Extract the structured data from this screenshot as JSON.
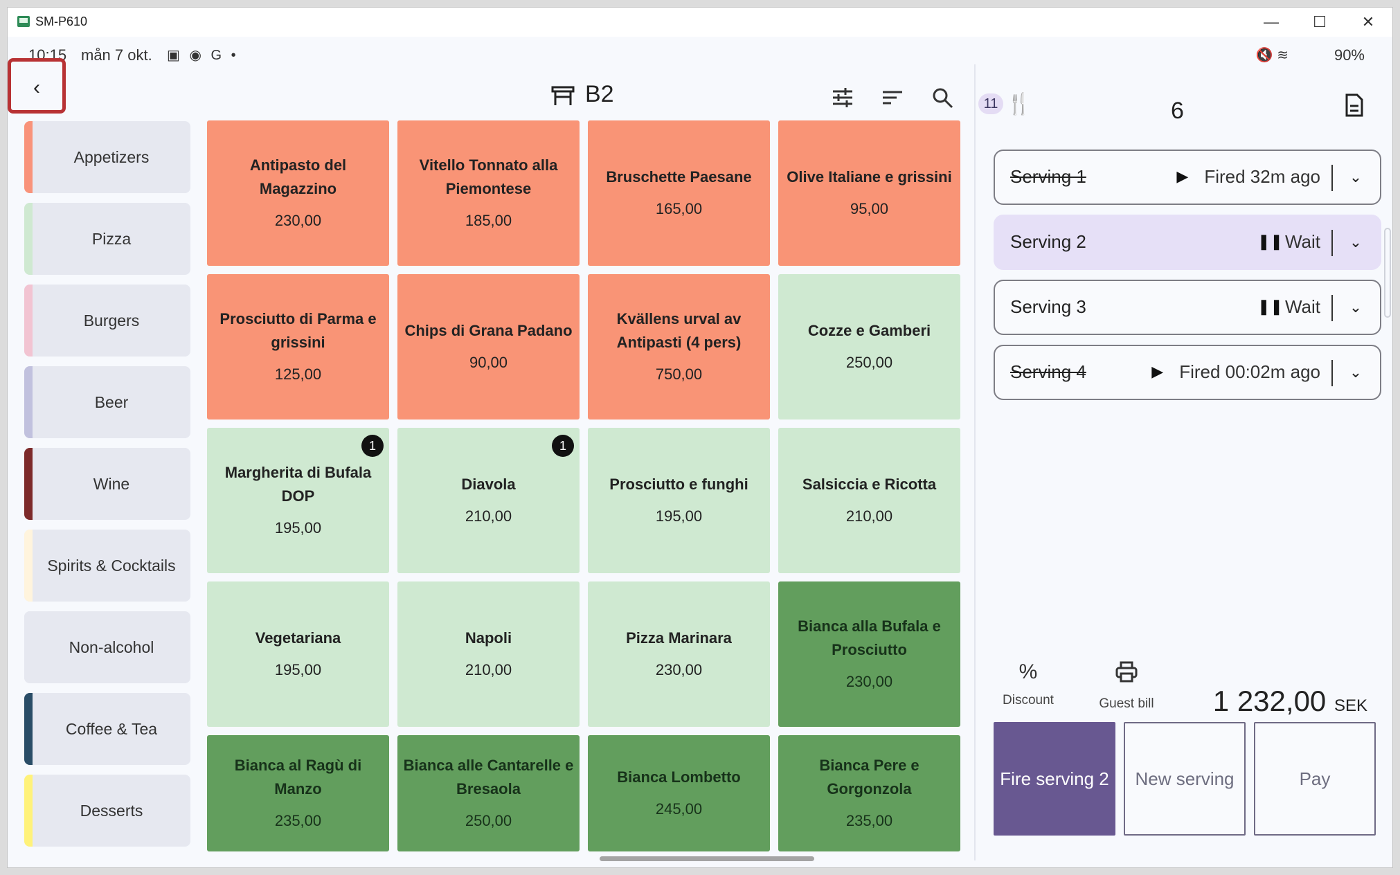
{
  "window": {
    "title": "SM-P610",
    "minimize": "—",
    "maximize": "☐",
    "close": "✕"
  },
  "status": {
    "time": "10:15",
    "date": "mån 7 okt.",
    "icons": "▣ ◉ G •",
    "battery": "90%",
    "right_icons": "🔇 ≋"
  },
  "header": {
    "back": "‹",
    "table": "B2"
  },
  "categories": [
    {
      "label": "Appetizers",
      "color": "#f9937a"
    },
    {
      "label": "Pizza",
      "color": "#cfe9d1"
    },
    {
      "label": "Burgers",
      "color": "#f2c4d2"
    },
    {
      "label": "Beer",
      "color": "#c1c1de"
    },
    {
      "label": "Wine",
      "color": "#7d2a2a"
    },
    {
      "label": "Spirits & Cocktails",
      "color": "#fff4dd"
    },
    {
      "label": "Non-alcohol",
      "color": "#e6e8f0"
    },
    {
      "label": "Coffee & Tea",
      "color": "#2a4d67"
    },
    {
      "label": "Desserts",
      "color": "#fff27a"
    }
  ],
  "products": [
    {
      "name": "Antipasto del Magazzino",
      "price": "230,00",
      "style": "orange",
      "badge": ""
    },
    {
      "name": "Vitello Tonnato alla Piemontese",
      "price": "185,00",
      "style": "orange",
      "badge": ""
    },
    {
      "name": "Bruschette Paesane",
      "price": "165,00",
      "style": "orange",
      "badge": ""
    },
    {
      "name": "Olive Italiane e grissini",
      "price": "95,00",
      "style": "orange",
      "badge": ""
    },
    {
      "name": "Prosciutto di Parma e grissini",
      "price": "125,00",
      "style": "orange",
      "badge": ""
    },
    {
      "name": "Chips di Grana Padano",
      "price": "90,00",
      "style": "orange",
      "badge": ""
    },
    {
      "name": "Kvällens urval av Antipasti (4 pers)",
      "price": "750,00",
      "style": "orange",
      "badge": ""
    },
    {
      "name": "Cozze e Gamberi",
      "price": "250,00",
      "style": "light",
      "badge": ""
    },
    {
      "name": "Margherita di Bufala DOP",
      "price": "195,00",
      "style": "light",
      "badge": "1"
    },
    {
      "name": "Diavola",
      "price": "210,00",
      "style": "light",
      "badge": "1"
    },
    {
      "name": "Prosciutto e funghi",
      "price": "195,00",
      "style": "light",
      "badge": ""
    },
    {
      "name": "Salsiccia e Ricotta",
      "price": "210,00",
      "style": "light",
      "badge": ""
    },
    {
      "name": "Vegetariana",
      "price": "195,00",
      "style": "light",
      "badge": ""
    },
    {
      "name": "Napoli",
      "price": "210,00",
      "style": "light",
      "badge": ""
    },
    {
      "name": "Pizza Marinara",
      "price": "230,00",
      "style": "light",
      "badge": ""
    },
    {
      "name": "Bianca alla Bufala e Prosciutto",
      "price": "230,00",
      "style": "dark",
      "badge": ""
    },
    {
      "name": "Bianca al Ragù di Manzo",
      "price": "235,00",
      "style": "dark",
      "badge": ""
    },
    {
      "name": "Bianca alle Cantarelle e Bresaola",
      "price": "250,00",
      "style": "dark",
      "badge": ""
    },
    {
      "name": "Bianca Lombetto",
      "price": "245,00",
      "style": "dark",
      "badge": ""
    },
    {
      "name": "Bianca Pere e Gorgonzola",
      "price": "235,00",
      "style": "dark",
      "badge": ""
    }
  ],
  "order": {
    "counter": "11",
    "guests": "6",
    "servings": [
      {
        "name": "Serving 1",
        "status": "Fired 32m ago",
        "state": "fired",
        "glyph": "▶"
      },
      {
        "name": "Serving 2",
        "status": "Wait",
        "state": "active",
        "glyph": "❚❚"
      },
      {
        "name": "Serving 3",
        "status": "Wait",
        "state": "wait",
        "glyph": "❚❚"
      },
      {
        "name": "Serving 4",
        "status": "Fired 00:02m ago",
        "state": "fired",
        "glyph": "▶"
      }
    ],
    "discount_label": "Discount",
    "guest_bill_label": "Guest bill",
    "total": "1 232,00",
    "currency": "SEK",
    "fire_label": "Fire serving 2",
    "new_serving_label": "New serving",
    "pay_label": "Pay"
  }
}
